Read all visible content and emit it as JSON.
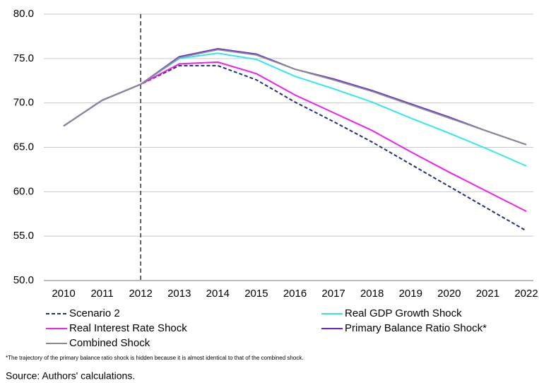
{
  "chart_data": {
    "type": "line",
    "categories": [
      "2010",
      "2011",
      "2012",
      "2013",
      "2014",
      "2015",
      "2016",
      "2017",
      "2018",
      "2019",
      "2020",
      "2021",
      "2022"
    ],
    "series": [
      {
        "name": "Scenario 2",
        "color": "#1f2f7a",
        "dashed": true,
        "values": [
          67.4,
          70.3,
          72.1,
          74.2,
          74.2,
          72.6,
          70.1,
          67.9,
          65.6,
          63.1,
          60.6,
          58.1,
          55.6
        ]
      },
      {
        "name": "Real GDP Growth Shock",
        "color": "#33e6f0",
        "values": [
          67.4,
          70.3,
          72.1,
          75.0,
          75.6,
          74.9,
          73.0,
          71.6,
          70.1,
          68.3,
          66.6,
          64.8,
          62.9
        ]
      },
      {
        "name": "Real Interest Rate Shock",
        "color": "#f020e8",
        "values": [
          67.4,
          70.3,
          72.1,
          74.4,
          74.6,
          73.3,
          70.9,
          68.9,
          66.9,
          64.5,
          62.2,
          60.0,
          57.8
        ]
      },
      {
        "name": "Primary Balance Ratio Shock*",
        "color": "#6a1fd0",
        "values": [
          67.4,
          70.3,
          72.1,
          75.2,
          76.1,
          75.5,
          73.8,
          72.7,
          71.4,
          69.9,
          68.4,
          66.8,
          65.3
        ]
      },
      {
        "name": "Combined Shock",
        "color": "#8a8a94",
        "values": [
          67.4,
          70.3,
          72.1,
          75.1,
          76.0,
          75.4,
          73.8,
          72.6,
          71.3,
          69.8,
          68.3,
          66.8,
          65.3
        ]
      }
    ],
    "ylim": [
      50,
      80
    ],
    "yticks": [
      {
        "value": 50,
        "label": "50.0"
      },
      {
        "value": 55,
        "label": "55.0"
      },
      {
        "value": 60,
        "label": "60.0"
      },
      {
        "value": 65,
        "label": "65.0"
      },
      {
        "value": 70,
        "label": "70.0"
      },
      {
        "value": 75,
        "label": "75.0"
      },
      {
        "value": 80,
        "label": "80.0"
      }
    ],
    "grid": true,
    "vertical_line_at": "2012",
    "note": "*The trajectory of the primary balance ratio shock is hidden because it is almost identical to that of the combined shock.",
    "source": "Source: Authors' calculations."
  }
}
